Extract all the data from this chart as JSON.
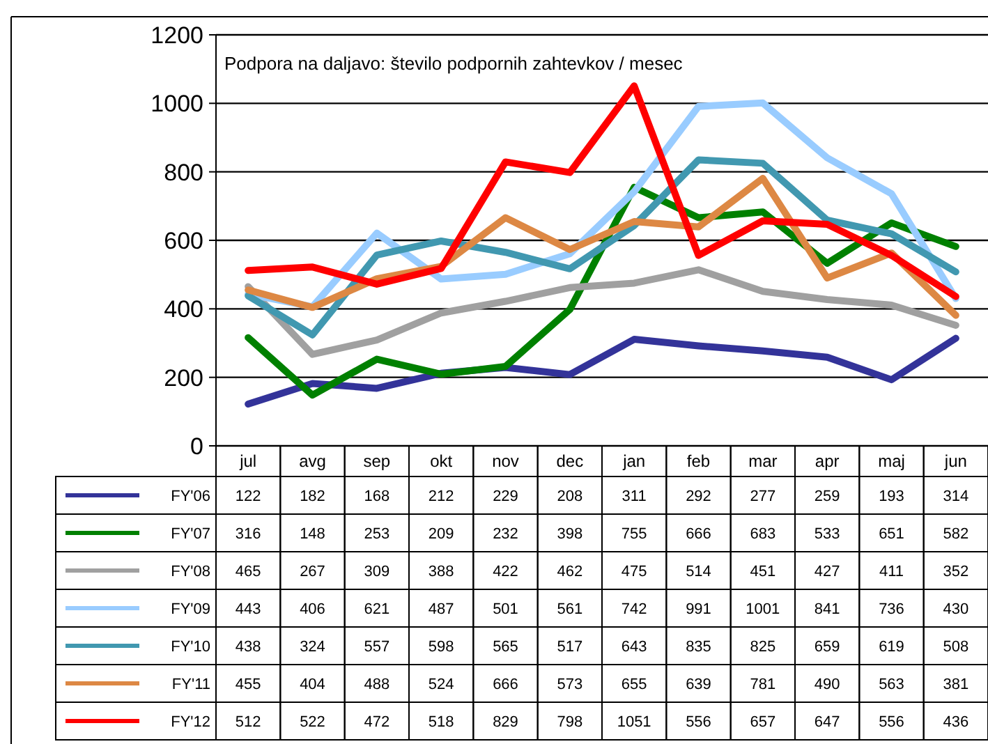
{
  "chart_data": {
    "type": "line",
    "title": "Podpora na daljavo: število podpornih zahtevkov / mesec",
    "categories": [
      "jul",
      "avg",
      "sep",
      "okt",
      "nov",
      "dec",
      "jan",
      "feb",
      "mar",
      "apr",
      "maj",
      "jun"
    ],
    "series": [
      {
        "name": "FY'06",
        "color": "#333399",
        "values": [
          122,
          182,
          168,
          212,
          229,
          208,
          311,
          292,
          277,
          259,
          193,
          314
        ]
      },
      {
        "name": "FY'07",
        "color": "#008000",
        "values": [
          316,
          148,
          253,
          209,
          232,
          398,
          755,
          666,
          683,
          533,
          651,
          582
        ]
      },
      {
        "name": "FY'08",
        "color": "#a0a0a0",
        "values": [
          465,
          267,
          309,
          388,
          422,
          462,
          475,
          514,
          451,
          427,
          411,
          352
        ]
      },
      {
        "name": "FY'09",
        "color": "#99ccff",
        "values": [
          443,
          406,
          621,
          487,
          501,
          561,
          742,
          991,
          1001,
          841,
          736,
          430
        ]
      },
      {
        "name": "FY'10",
        "color": "#4198b0",
        "values": [
          438,
          324,
          557,
          598,
          565,
          517,
          643,
          835,
          825,
          659,
          619,
          508
        ]
      },
      {
        "name": "FY'11",
        "color": "#dd8844",
        "values": [
          455,
          404,
          488,
          524,
          666,
          573,
          655,
          639,
          781,
          490,
          563,
          381
        ]
      },
      {
        "name": "FY'12",
        "color": "#ff0000",
        "values": [
          512,
          522,
          472,
          518,
          829,
          798,
          1051,
          556,
          657,
          647,
          556,
          436
        ]
      }
    ],
    "ylim": [
      0,
      1200
    ],
    "yticks": [
      0,
      200,
      400,
      600,
      800,
      1000,
      1200
    ],
    "grid": "y",
    "legend": "bottom",
    "data_labels": true
  }
}
